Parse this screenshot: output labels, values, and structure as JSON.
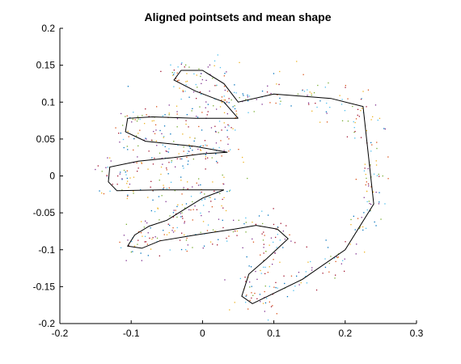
{
  "chart_data": {
    "type": "scatter",
    "title": "Aligned pointsets and mean shape",
    "xlabel": "",
    "ylabel": "",
    "xlim": [
      -0.2,
      0.3
    ],
    "ylim": [
      -0.2,
      0.2
    ],
    "x_ticks": [
      "-0.2",
      "-0.1",
      "0",
      "0.1",
      "0.2",
      "0.3"
    ],
    "y_ticks": [
      "-0.2",
      "-0.15",
      "-0.1",
      "-0.05",
      "0",
      "0.05",
      "0.1",
      "0.15",
      "0.2"
    ],
    "grid": false,
    "legend": "none",
    "point_colors": [
      "#0072BD",
      "#D95319",
      "#EDB120",
      "#7E2F8E",
      "#77AC30",
      "#4DBEEE",
      "#A2142F"
    ],
    "mean_shape_color": "#000000",
    "mean_shape": {
      "x": [
        0.05,
        0.03,
        -0.01,
        -0.04,
        -0.03,
        0.0,
        0.03,
        0.05,
        0.1,
        0.18,
        0.225,
        0.24,
        0.2,
        0.14,
        0.07,
        0.055,
        0.065,
        0.09,
        0.12,
        0.105,
        0.075,
        0.045,
        -0.01,
        -0.06,
        -0.085,
        -0.105,
        -0.095,
        -0.075,
        -0.05,
        -0.03,
        0.0,
        0.03,
        -0.06,
        -0.12,
        -0.132,
        -0.13,
        -0.09,
        -0.04,
        0.0,
        0.035,
        -0.01,
        -0.08,
        -0.108,
        -0.105,
        -0.07,
        -0.01,
        0.05
      ],
      "y": [
        0.078,
        0.1,
        0.115,
        0.13,
        0.143,
        0.143,
        0.125,
        0.1,
        0.111,
        0.105,
        0.094,
        -0.038,
        -0.1,
        -0.14,
        -0.173,
        -0.163,
        -0.133,
        -0.112,
        -0.085,
        -0.072,
        -0.067,
        -0.072,
        -0.08,
        -0.088,
        -0.098,
        -0.095,
        -0.08,
        -0.068,
        -0.06,
        -0.048,
        -0.03,
        -0.019,
        -0.019,
        -0.02,
        -0.008,
        0.012,
        0.02,
        0.025,
        0.03,
        0.032,
        0.04,
        0.047,
        0.06,
        0.078,
        0.08,
        0.078,
        0.078
      ]
    }
  }
}
